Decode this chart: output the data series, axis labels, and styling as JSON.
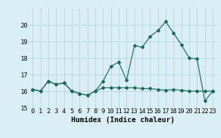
{
  "title": "",
  "xlabel": "Humidex (Indice chaleur)",
  "x_values": [
    0,
    1,
    2,
    3,
    4,
    5,
    6,
    7,
    8,
    9,
    10,
    11,
    12,
    13,
    14,
    15,
    16,
    17,
    18,
    19,
    20,
    21,
    22,
    23
  ],
  "line1_y": [
    16.1,
    16.0,
    16.6,
    16.4,
    16.5,
    16.0,
    15.85,
    15.75,
    16.0,
    16.6,
    17.5,
    17.75,
    16.65,
    18.75,
    18.65,
    19.3,
    19.65,
    20.2,
    19.5,
    18.8,
    18.0,
    17.95,
    15.4,
    16.0
  ],
  "line2_y": [
    16.1,
    16.0,
    16.6,
    16.4,
    16.5,
    16.0,
    15.85,
    15.75,
    16.0,
    16.2,
    16.2,
    16.2,
    16.2,
    16.2,
    16.15,
    16.15,
    16.1,
    16.05,
    16.1,
    16.05,
    16.0,
    16.0,
    16.0,
    16.0
  ],
  "line_color": "#1a6b5a",
  "bg_color": "#d9eff5",
  "grid_color": "#aacdd8",
  "ylim": [
    15,
    21
  ],
  "yticks": [
    15,
    16,
    17,
    18,
    19,
    20
  ],
  "xticks": [
    0,
    1,
    2,
    3,
    4,
    5,
    6,
    7,
    8,
    9,
    10,
    11,
    12,
    13,
    14,
    15,
    16,
    17,
    18,
    19,
    20,
    21,
    22,
    23
  ],
  "xlabel_fontsize": 7.5,
  "tick_fontsize": 6.5
}
